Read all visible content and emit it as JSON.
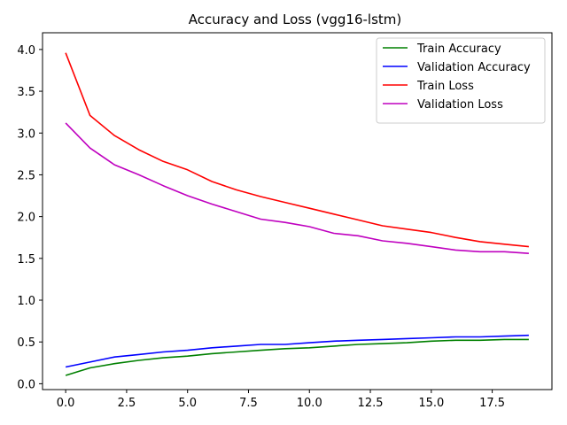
{
  "chart_data": {
    "type": "line",
    "title": "Accuracy and Loss (vgg16-lstm)",
    "xlabel": "",
    "ylabel": "",
    "xlim": [
      -0.95,
      19.95
    ],
    "ylim": [
      -0.07,
      4.2
    ],
    "x_ticks": [
      0.0,
      2.5,
      5.0,
      7.5,
      10.0,
      12.5,
      15.0,
      17.5
    ],
    "x_tick_labels": [
      "0.0",
      "2.5",
      "5.0",
      "7.5",
      "10.0",
      "12.5",
      "15.0",
      "17.5"
    ],
    "y_ticks": [
      0.0,
      0.5,
      1.0,
      1.5,
      2.0,
      2.5,
      3.0,
      3.5,
      4.0
    ],
    "y_tick_labels": [
      "0.0",
      "0.5",
      "1.0",
      "1.5",
      "2.0",
      "2.5",
      "3.0",
      "3.5",
      "4.0"
    ],
    "grid": false,
    "legend_position": "top-right",
    "x": [
      0,
      1,
      2,
      3,
      4,
      5,
      6,
      7,
      8,
      9,
      10,
      11,
      12,
      13,
      14,
      15,
      16,
      17,
      18,
      19
    ],
    "series": [
      {
        "name": "Train Accuracy",
        "color": "#008000",
        "values": [
          0.1,
          0.19,
          0.24,
          0.28,
          0.31,
          0.33,
          0.36,
          0.38,
          0.4,
          0.42,
          0.43,
          0.45,
          0.47,
          0.48,
          0.49,
          0.51,
          0.52,
          0.52,
          0.53,
          0.53
        ]
      },
      {
        "name": "Validation Accuracy",
        "color": "#0000ff",
        "values": [
          0.2,
          0.26,
          0.32,
          0.35,
          0.38,
          0.4,
          0.43,
          0.45,
          0.47,
          0.47,
          0.49,
          0.51,
          0.52,
          0.53,
          0.54,
          0.55,
          0.56,
          0.56,
          0.57,
          0.58
        ]
      },
      {
        "name": "Train Loss",
        "color": "#ff0000",
        "values": [
          3.96,
          3.21,
          2.97,
          2.8,
          2.66,
          2.56,
          2.42,
          2.32,
          2.24,
          2.17,
          2.1,
          2.03,
          1.96,
          1.89,
          1.85,
          1.81,
          1.75,
          1.7,
          1.67,
          1.64
        ]
      },
      {
        "name": "Validation Loss",
        "color": "#bf00bf",
        "values": [
          3.12,
          2.82,
          2.62,
          2.5,
          2.37,
          2.25,
          2.15,
          2.06,
          1.97,
          1.93,
          1.88,
          1.8,
          1.77,
          1.71,
          1.68,
          1.64,
          1.6,
          1.58,
          1.58,
          1.56
        ]
      }
    ]
  }
}
